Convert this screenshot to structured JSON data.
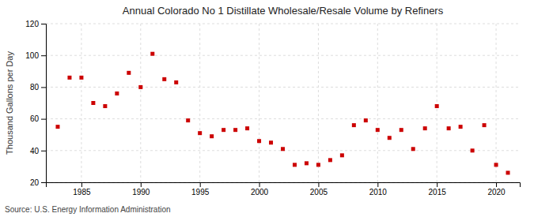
{
  "chart_data": {
    "type": "scatter",
    "title": "Annual Colorado No 1 Distillate Wholesale/Resale Volume by Refiners",
    "ylabel": "Thousand Gallons per Day",
    "source": "Source: U.S. Energy Information Administration",
    "color": "#cc0000",
    "marker": "square",
    "x": [
      1983,
      1984,
      1985,
      1986,
      1987,
      1988,
      1989,
      1990,
      1991,
      1992,
      1993,
      1994,
      1995,
      1996,
      1997,
      1998,
      1999,
      2000,
      2001,
      2002,
      2003,
      2004,
      2005,
      2006,
      2007,
      2008,
      2009,
      2010,
      2011,
      2012,
      2013,
      2014,
      2015,
      2016,
      2017,
      2018,
      2019,
      2020,
      2021
    ],
    "values": [
      55,
      86,
      86,
      70,
      68,
      76,
      89,
      80,
      101,
      85,
      83,
      59,
      51,
      49,
      53,
      53,
      54,
      46,
      45,
      41,
      31,
      32,
      31,
      34,
      37,
      56,
      59,
      53,
      48,
      53,
      41,
      54,
      68,
      54,
      55,
      40,
      56,
      31,
      26
    ],
    "xlim": [
      1982,
      2022
    ],
    "ylim": [
      20,
      120
    ],
    "xticks": [
      1985,
      1990,
      1995,
      2000,
      2005,
      2010,
      2015,
      2020
    ],
    "yticks": [
      20,
      40,
      60,
      80,
      100,
      120
    ],
    "grid": true
  }
}
